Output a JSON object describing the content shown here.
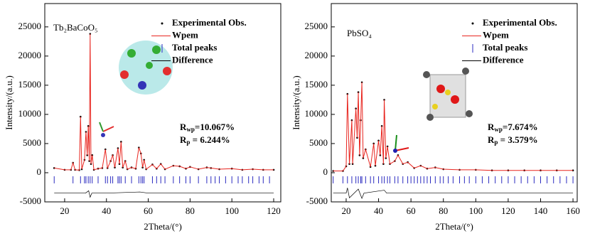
{
  "chart_data": [
    {
      "type": "xrd",
      "title": "Tb₂BaCoO₅",
      "x_label": "2Theta/(°)",
      "y_label": "Intensity/(a.u.)",
      "xlim": [
        10.5,
        123.4
      ],
      "xticks": [
        20,
        40,
        60,
        80,
        100,
        120
      ],
      "ylim": [
        -5000,
        29000
      ],
      "yticks": [
        -5000,
        0,
        5000,
        10000,
        15000,
        20000,
        25000
      ],
      "annotations": [
        {
          "symbol": "R",
          "sub": "wp",
          "text": "=10.067%"
        },
        {
          "symbol": "R",
          "sub": "p",
          "text": " = 6.244%"
        }
      ],
      "series": [
        {
          "name": "Experimental Obs.",
          "color": "#000000",
          "style": "dots",
          "x": [
            15,
            20,
            23,
            24,
            25,
            27,
            27.6,
            28.2,
            29.5,
            30.2,
            30.8,
            31.3,
            31.8,
            32.2,
            32.6,
            33.2,
            34,
            36,
            38,
            39.5,
            40.5,
            42,
            43,
            44,
            45.5,
            46.2,
            47,
            47.8,
            49,
            50,
            52,
            54,
            55.5,
            56.5,
            57.3,
            58,
            59,
            62,
            64,
            66,
            68,
            72,
            75,
            78,
            80,
            84,
            88,
            90,
            94,
            100,
            105,
            110,
            115,
            120
          ],
          "values": [
            800,
            500,
            500,
            1700,
            500,
            450,
            9600,
            600,
            2200,
            7000,
            3000,
            8000,
            2000,
            23800,
            1500,
            3000,
            500,
            700,
            800,
            4000,
            800,
            2000,
            3000,
            900,
            4200,
            1500,
            5300,
            900,
            2000,
            600,
            900,
            700,
            4300,
            3300,
            900,
            2200,
            600,
            1400,
            700,
            1500,
            600,
            1200,
            1100,
            700,
            1000,
            600,
            900,
            800,
            600,
            700,
            500,
            600,
            500,
            500
          ]
        },
        {
          "name": "Wpem",
          "color": "#e8251f",
          "style": "line",
          "x": [
            15,
            20,
            23,
            24,
            25,
            27,
            27.6,
            28.2,
            29.5,
            30.2,
            30.8,
            31.3,
            31.8,
            32.2,
            32.6,
            33.2,
            34,
            36,
            38,
            39.5,
            40.5,
            42,
            43,
            44,
            45.5,
            46.2,
            47,
            47.8,
            49,
            50,
            52,
            54,
            55.5,
            56.5,
            57.3,
            58,
            59,
            62,
            64,
            66,
            68,
            72,
            75,
            78,
            80,
            84,
            88,
            90,
            94,
            100,
            105,
            110,
            115,
            120
          ],
          "values": [
            800,
            500,
            500,
            1700,
            500,
            450,
            9600,
            600,
            2200,
            7000,
            3000,
            8000,
            2000,
            23800,
            1500,
            3000,
            500,
            700,
            800,
            4000,
            800,
            2000,
            3000,
            900,
            4200,
            1500,
            5300,
            900,
            2000,
            600,
            900,
            700,
            4300,
            3300,
            900,
            2200,
            600,
            1400,
            700,
            1500,
            600,
            1200,
            1100,
            700,
            1000,
            600,
            900,
            800,
            600,
            700,
            500,
            600,
            500,
            500
          ]
        },
        {
          "name": "Total peaks",
          "color": "#2b2bc0",
          "style": "ticks",
          "x": [
            15,
            24,
            27.6,
            29.5,
            30.2,
            31.3,
            32.2,
            33.2,
            36,
            39.5,
            40.5,
            42,
            43,
            45.5,
            46.2,
            47,
            49,
            52,
            55.5,
            56.5,
            57.3,
            58,
            62,
            64,
            66,
            68,
            72,
            75,
            78,
            80,
            84,
            88,
            90,
            92,
            94,
            97,
            100,
            103,
            105,
            108,
            110,
            113,
            115,
            118
          ]
        },
        {
          "name": "Difference",
          "color": "#000000",
          "style": "line",
          "x": [
            15,
            30,
            31.5,
            32.2,
            33,
            40,
            56,
            60,
            120
          ],
          "values": [
            -3500,
            -3500,
            -3100,
            -4200,
            -3500,
            -3500,
            -3300,
            -3500,
            -3500
          ]
        }
      ]
    },
    {
      "type": "xrd",
      "title": "PbSO₄",
      "x_label": "2Theta/(°)",
      "y_label": "Intensity/(a.u.)",
      "xlim": [
        10.8,
        162.6
      ],
      "xticks": [
        20,
        40,
        60,
        80,
        100,
        120,
        140,
        160
      ],
      "ylim": [
        -5000,
        29000
      ],
      "yticks": [
        -5000,
        0,
        5000,
        10000,
        15000,
        20000,
        25000
      ],
      "annotations": [
        {
          "symbol": "R",
          "sub": "wp",
          "text": "=7.674%"
        },
        {
          "symbol": "R",
          "sub": "p",
          "text": " = 3.579%"
        }
      ],
      "series": [
        {
          "name": "Experimental Obs.",
          "color": "#000000",
          "style": "dots",
          "x": [
            12,
            18,
            20,
            20.8,
            22,
            23.5,
            24,
            26,
            26.8,
            27.5,
            28.3,
            29,
            29.7,
            30.5,
            32,
            35,
            37,
            38,
            40,
            41,
            42,
            43,
            43.5,
            44.5,
            45.5,
            47,
            50,
            52,
            55,
            58,
            62,
            66,
            70,
            75,
            80,
            90,
            100,
            110,
            120,
            130,
            140,
            150,
            160
          ],
          "values": [
            300,
            300,
            1100,
            13500,
            1500,
            9000,
            1500,
            11000,
            6000,
            13800,
            3000,
            9000,
            15500,
            2500,
            4000,
            1000,
            5000,
            1200,
            5500,
            3000,
            8000,
            1500,
            12500,
            2500,
            4500,
            1500,
            2000,
            3000,
            1500,
            1800,
            800,
            1200,
            700,
            900,
            600,
            500,
            500,
            400,
            400,
            400,
            400,
            400,
            400
          ]
        },
        {
          "name": "Wpem",
          "color": "#e8251f",
          "style": "line",
          "x": [
            12,
            18,
            20,
            20.8,
            22,
            23.5,
            24,
            26,
            26.8,
            27.5,
            28.3,
            29,
            29.7,
            30.5,
            32,
            35,
            37,
            38,
            40,
            41,
            42,
            43,
            43.5,
            44.5,
            45.5,
            47,
            50,
            52,
            55,
            58,
            62,
            66,
            70,
            75,
            80,
            90,
            100,
            110,
            120,
            130,
            140,
            150,
            160
          ],
          "values": [
            300,
            300,
            1100,
            13500,
            1500,
            9000,
            1500,
            11000,
            6000,
            13800,
            3000,
            9000,
            15500,
            2500,
            4000,
            1000,
            5000,
            1200,
            5500,
            3000,
            8000,
            1500,
            12500,
            2500,
            4500,
            1500,
            2000,
            3000,
            1500,
            1800,
            800,
            1200,
            700,
            900,
            600,
            500,
            500,
            400,
            400,
            400,
            400,
            400,
            400
          ]
        },
        {
          "name": "Total peaks",
          "color": "#2b2bc0",
          "style": "ticks",
          "x": [
            12,
            18,
            20.8,
            23.5,
            26,
            27.5,
            29,
            29.7,
            32,
            35,
            37,
            40,
            42,
            43.5,
            45.5,
            47,
            50,
            52,
            55,
            58,
            60,
            62,
            64,
            66,
            68,
            70,
            72,
            75,
            78,
            80,
            83,
            86,
            90,
            93,
            96,
            100,
            104,
            108,
            112,
            116,
            120,
            124,
            128,
            132,
            136,
            140,
            144,
            148,
            152,
            156,
            160
          ]
        },
        {
          "name": "Difference",
          "color": "#000000",
          "style": "line",
          "x": [
            12,
            20,
            20.8,
            22,
            27.5,
            29.7,
            31,
            43.5,
            45,
            60,
            160
          ],
          "values": [
            -3500,
            -3500,
            -2600,
            -4300,
            -2800,
            -4400,
            -3500,
            -3000,
            -3500,
            -3500,
            -3500
          ]
        }
      ]
    }
  ]
}
